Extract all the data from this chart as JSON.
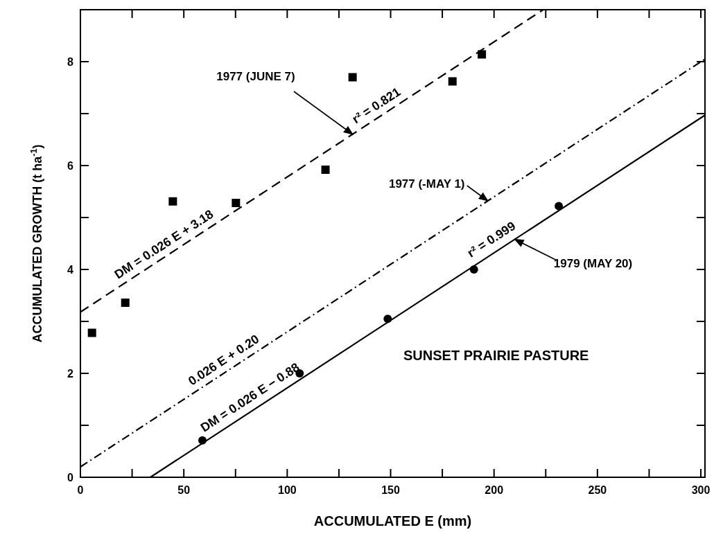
{
  "chart_data": {
    "type": "scatter",
    "xlabel": "ACCUMULATED E (mm)",
    "ylabel": "ACCUMULATED GROWTH  (t ha$^{-1}$)",
    "xlim": [
      0,
      302
    ],
    "ylim": [
      0,
      9
    ],
    "xticks": [
      0,
      {
        "value": 25,
        "label": null
      },
      50,
      {
        "value": 75,
        "label": null
      },
      100,
      {
        "value": 125,
        "label": null
      },
      150,
      {
        "value": 175,
        "label": null
      },
      200,
      {
        "value": 225,
        "label": null
      },
      250,
      {
        "value": 275,
        "label": null
      },
      300
    ],
    "yticks": [
      0,
      {
        "value": 1,
        "label": null
      },
      2,
      {
        "value": 3,
        "label": null
      },
      4,
      {
        "value": 5,
        "label": null
      },
      6,
      {
        "value": 7,
        "label": null
      },
      8
    ],
    "grid": false,
    "series": [
      {
        "marker": "square",
        "color": "#000000",
        "x": [
          5.6,
          21.7,
          44.7,
          75.2,
          118.5,
          131.6,
          179.9,
          194.1
        ],
        "values": [
          2.78,
          3.36,
          5.31,
          5.28,
          5.92,
          7.7,
          7.62,
          8.14
        ]
      },
      {
        "marker": "circle",
        "color": "#000000",
        "x": [
          59,
          106,
          148.6,
          190.3,
          231.3
        ],
        "values": [
          0.71,
          2.0,
          3.05,
          4.0,
          5.22
        ]
      },
      {
        "type": "line",
        "line_style": "dashed",
        "color": "#000000",
        "x": [
          0,
          223.8
        ],
        "values": [
          3.18,
          9.0
        ]
      },
      {
        "type": "line",
        "line_style": "dashdot",
        "color": "#000000",
        "x": [
          0,
          302
        ],
        "values": [
          0.2,
          8.05
        ]
      },
      {
        "type": "line",
        "line_style": "solid",
        "color": "#000000",
        "x": [
          33.8,
          302
        ],
        "values": [
          0,
          6.97
        ]
      }
    ],
    "annotations": [
      {
        "text": "1977 (JUNE 7)",
        "x": 131.7,
        "y": 6.6
      },
      {
        "text": "r² = 0.821",
        "x": 135,
        "y": 6.69
      },
      {
        "text": "DM = 0.026 E + 3.18",
        "x": 20,
        "y": 3.7
      },
      {
        "text": "1977 (-MAY 1)",
        "x": 197,
        "y": 5.32
      },
      {
        "text": "0.026 E + 0.20",
        "x": 55.7,
        "y": 1.65
      },
      {
        "text": "DM = 0.026 E − 0.88",
        "x": 62,
        "y": 0.73
      },
      {
        "text": "r² = 0.999",
        "x": 191,
        "y": 4.09
      },
      {
        "text": "1979 (MAY 20)",
        "x": 210,
        "y": 4.58
      },
      "SUNSET PRAIRIE PASTURE"
    ]
  }
}
